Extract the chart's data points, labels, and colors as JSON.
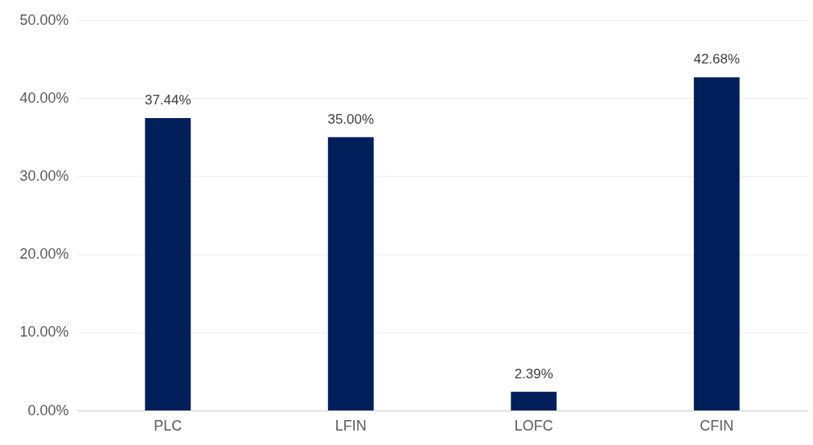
{
  "chart_data": {
    "type": "bar",
    "categories": [
      "PLC",
      "LFIN",
      "LOFC",
      "CFIN"
    ],
    "values": [
      37.44,
      35.0,
      2.39,
      42.68
    ],
    "value_labels": [
      "37.44%",
      "35.00%",
      "2.39%",
      "42.68%"
    ],
    "color": "#001f5b",
    "ylim": [
      0,
      50
    ],
    "yticks": [
      {
        "value": 0,
        "label": "0.00%"
      },
      {
        "value": 10,
        "label": "10.00%"
      },
      {
        "value": 20,
        "label": "20.00%"
      },
      {
        "value": 30,
        "label": "30.00%"
      },
      {
        "value": 40,
        "label": "40.00%"
      },
      {
        "value": 50,
        "label": "50.00%"
      }
    ],
    "grid": "y"
  }
}
